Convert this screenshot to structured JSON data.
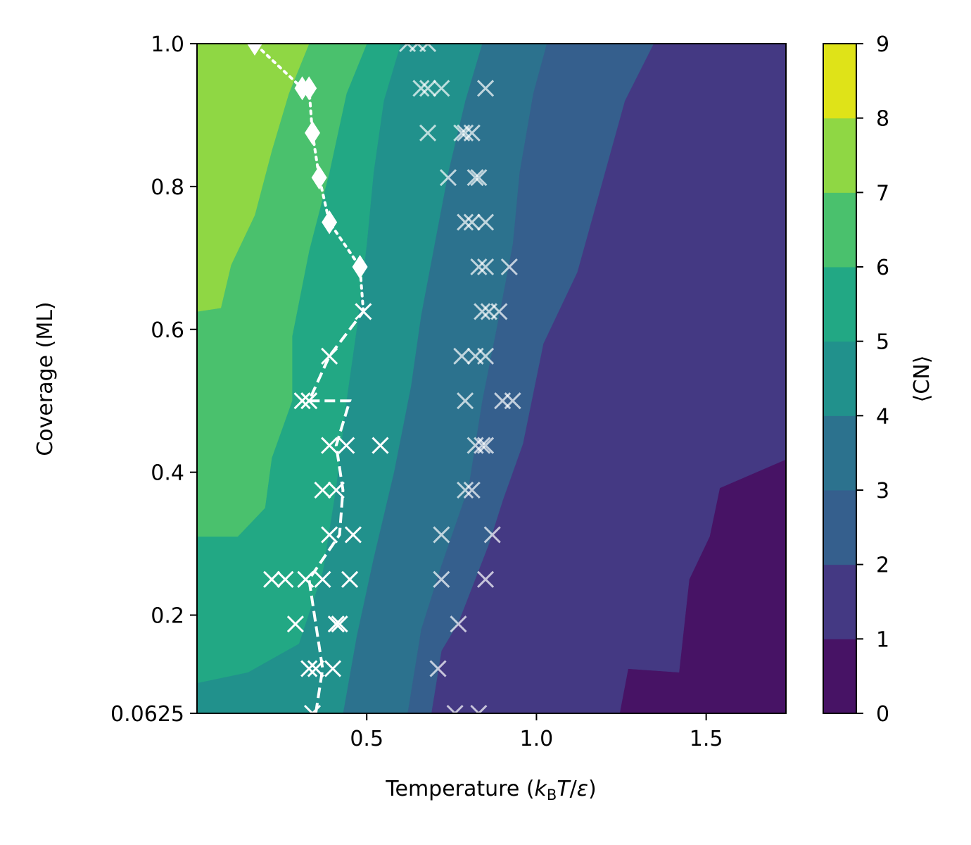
{
  "chart_data": {
    "type": "contourf",
    "xlabel_parts": [
      "Temperature (",
      "k",
      "B",
      "T",
      "/",
      "ε",
      ")"
    ],
    "ylabel": "Coverage (ML)",
    "colorbar_label": "⟨CN⟩",
    "xlim": [
      0.0,
      1.735
    ],
    "ylim": [
      0.0625,
      1.0
    ],
    "x_ticks": [
      0.5,
      1.0,
      1.5
    ],
    "x_tick_labels": [
      "0.5",
      "1.0",
      "1.5"
    ],
    "y_ticks": [
      0.0625,
      0.2,
      0.4,
      0.6,
      0.8,
      1.0
    ],
    "y_tick_labels": [
      "0.0625",
      "0.2",
      "0.4",
      "0.6",
      "0.8",
      "1.0"
    ],
    "levels": [
      0,
      1,
      2,
      3,
      4,
      5,
      6,
      7,
      8,
      9
    ],
    "colorbar_tick_labels": [
      "0",
      "1",
      "2",
      "3",
      "4",
      "5",
      "6",
      "7",
      "8",
      "9"
    ],
    "level_colors": [
      "#471365",
      "#443983",
      "#355f8d",
      "#2c728e",
      "#21918c",
      "#22a884",
      "#4ac16d",
      "#8fd744",
      "#dfe318"
    ],
    "contour_boundaries": [
      {
        "level": 1,
        "points": [
          [
            1.735,
            0.418
          ],
          [
            1.54,
            0.378
          ],
          [
            1.51,
            0.31
          ],
          [
            1.45,
            0.25
          ],
          [
            1.42,
            0.12
          ],
          [
            1.27,
            0.125
          ],
          [
            1.245,
            0.0625
          ]
        ]
      },
      {
        "level": 2,
        "points": [
          [
            1.345,
            1.0
          ],
          [
            1.26,
            0.92
          ],
          [
            1.19,
            0.8
          ],
          [
            1.12,
            0.68
          ],
          [
            1.02,
            0.58
          ],
          [
            0.96,
            0.44
          ],
          [
            0.9,
            0.36
          ],
          [
            0.86,
            0.3
          ],
          [
            0.77,
            0.19
          ],
          [
            0.72,
            0.15
          ],
          [
            0.69,
            0.0625
          ]
        ]
      },
      {
        "level": 3,
        "points": [
          [
            1.03,
            1.0
          ],
          [
            0.99,
            0.93
          ],
          [
            0.95,
            0.82
          ],
          [
            0.93,
            0.72
          ],
          [
            0.89,
            0.62
          ],
          [
            0.84,
            0.5
          ],
          [
            0.8,
            0.38
          ],
          [
            0.72,
            0.27
          ],
          [
            0.66,
            0.18
          ],
          [
            0.62,
            0.0625
          ]
        ]
      },
      {
        "level": 4,
        "points": [
          [
            0.84,
            1.0
          ],
          [
            0.79,
            0.92
          ],
          [
            0.74,
            0.82
          ],
          [
            0.7,
            0.72
          ],
          [
            0.66,
            0.62
          ],
          [
            0.63,
            0.52
          ],
          [
            0.58,
            0.4
          ],
          [
            0.52,
            0.28
          ],
          [
            0.47,
            0.17
          ],
          [
            0.43,
            0.0625
          ]
        ]
      },
      {
        "level": 5,
        "points": [
          [
            0.6,
            1.0
          ],
          [
            0.55,
            0.92
          ],
          [
            0.52,
            0.82
          ],
          [
            0.5,
            0.72
          ],
          [
            0.47,
            0.6
          ],
          [
            0.44,
            0.5
          ],
          [
            0.41,
            0.38
          ],
          [
            0.37,
            0.26
          ],
          [
            0.3,
            0.16
          ],
          [
            0.15,
            0.12
          ],
          [
            0.0,
            0.105
          ]
        ]
      },
      {
        "level": 6,
        "points": [
          [
            0.5,
            1.0
          ],
          [
            0.44,
            0.93
          ],
          [
            0.39,
            0.82
          ],
          [
            0.33,
            0.71
          ],
          [
            0.28,
            0.59
          ],
          [
            0.28,
            0.5
          ],
          [
            0.22,
            0.42
          ],
          [
            0.2,
            0.35
          ],
          [
            0.12,
            0.31
          ],
          [
            0.0,
            0.31
          ]
        ]
      },
      {
        "level": 7,
        "points": [
          [
            0.33,
            1.0
          ],
          [
            0.27,
            0.93
          ],
          [
            0.22,
            0.85
          ],
          [
            0.17,
            0.76
          ],
          [
            0.1,
            0.69
          ],
          [
            0.07,
            0.63
          ],
          [
            0.0,
            0.625
          ]
        ]
      }
    ],
    "dashed_line": {
      "style": "dashed",
      "x": [
        0.35,
        0.37,
        0.35,
        0.33,
        0.42,
        0.43,
        0.41,
        0.45,
        0.43,
        0.33,
        0.39,
        0.49
      ],
      "y": [
        0.0625,
        0.125,
        0.1875,
        0.25,
        0.3125,
        0.375,
        0.4375,
        0.5,
        0.5,
        0.5,
        0.5625,
        0.625
      ]
    },
    "dotted_line_with_diamonds": {
      "style": "dotted",
      "marker": "diamond",
      "x": [
        0.48,
        0.39,
        0.36,
        0.34,
        0.33,
        0.31,
        0.17
      ],
      "y": [
        0.6875,
        0.75,
        0.8125,
        0.875,
        0.9375,
        0.9375,
        1.0
      ]
    },
    "bright_x_markers": {
      "marker": "x",
      "points": [
        [
          0.34,
          0.0625
        ],
        [
          0.35,
          0.125
        ],
        [
          0.33,
          0.125
        ],
        [
          0.4,
          0.125
        ],
        [
          0.29,
          0.1875
        ],
        [
          0.42,
          0.1875
        ],
        [
          0.41,
          0.1875
        ],
        [
          0.22,
          0.25
        ],
        [
          0.26,
          0.25
        ],
        [
          0.32,
          0.25
        ],
        [
          0.37,
          0.25
        ],
        [
          0.45,
          0.25
        ],
        [
          0.39,
          0.3125
        ],
        [
          0.46,
          0.3125
        ],
        [
          0.37,
          0.375
        ],
        [
          0.41,
          0.375
        ],
        [
          0.39,
          0.4375
        ],
        [
          0.44,
          0.4375
        ],
        [
          0.54,
          0.4375
        ],
        [
          0.31,
          0.5
        ],
        [
          0.33,
          0.5
        ],
        [
          0.39,
          0.5625
        ],
        [
          0.49,
          0.625
        ]
      ]
    },
    "faint_x_markers": {
      "marker": "x",
      "points": [
        [
          0.76,
          0.0625
        ],
        [
          0.83,
          0.0625
        ],
        [
          0.71,
          0.125
        ],
        [
          0.77,
          0.1875
        ],
        [
          0.72,
          0.25
        ],
        [
          0.85,
          0.25
        ],
        [
          0.72,
          0.3125
        ],
        [
          0.87,
          0.3125
        ],
        [
          0.79,
          0.375
        ],
        [
          0.81,
          0.375
        ],
        [
          0.82,
          0.4375
        ],
        [
          0.84,
          0.4375
        ],
        [
          0.85,
          0.4375
        ],
        [
          0.79,
          0.5
        ],
        [
          0.9,
          0.5
        ],
        [
          0.93,
          0.5
        ],
        [
          0.78,
          0.5625
        ],
        [
          0.82,
          0.5625
        ],
        [
          0.85,
          0.5625
        ],
        [
          0.84,
          0.625
        ],
        [
          0.86,
          0.625
        ],
        [
          0.89,
          0.625
        ],
        [
          0.83,
          0.6875
        ],
        [
          0.85,
          0.6875
        ],
        [
          0.92,
          0.6875
        ],
        [
          0.79,
          0.75
        ],
        [
          0.81,
          0.75
        ],
        [
          0.85,
          0.75
        ],
        [
          0.74,
          0.8125
        ],
        [
          0.82,
          0.8125
        ],
        [
          0.83,
          0.8125
        ],
        [
          0.68,
          0.875
        ],
        [
          0.78,
          0.875
        ],
        [
          0.79,
          0.875
        ],
        [
          0.81,
          0.875
        ],
        [
          0.66,
          0.9375
        ],
        [
          0.68,
          0.9375
        ],
        [
          0.72,
          0.9375
        ],
        [
          0.85,
          0.9375
        ],
        [
          0.62,
          1.0
        ],
        [
          0.65,
          1.0
        ],
        [
          0.68,
          1.0
        ]
      ]
    }
  }
}
